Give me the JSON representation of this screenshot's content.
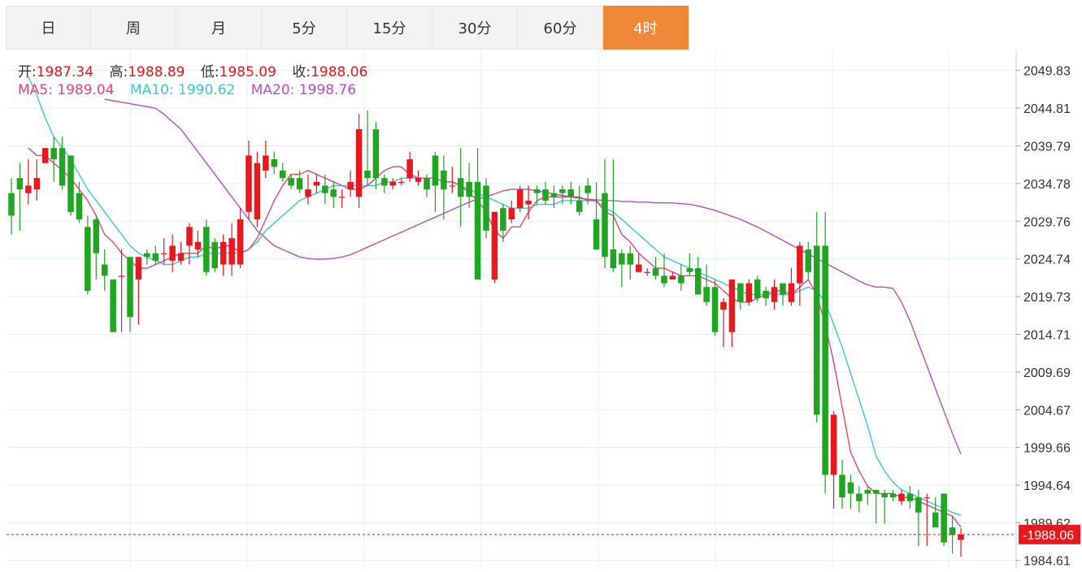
{
  "tabs": [
    {
      "label": "日",
      "active": false
    },
    {
      "label": "周",
      "active": false
    },
    {
      "label": "月",
      "active": false
    },
    {
      "label": "5分",
      "active": false
    },
    {
      "label": "15分",
      "active": false
    },
    {
      "label": "30分",
      "active": false
    },
    {
      "label": "60分",
      "active": false
    },
    {
      "label": "4时",
      "active": true
    }
  ],
  "ohlc": {
    "open_label": "开:",
    "open": "1987.34",
    "high_label": "高:",
    "high": "1988.89",
    "low_label": "低:",
    "low": "1985.09",
    "close_label": "收:",
    "close": "1988.06"
  },
  "ma_legend": {
    "ma5_label": "MA5:",
    "ma5": "1989.04",
    "ma10_label": "MA10:",
    "ma10": "1990.62",
    "ma20_label": "MA20:",
    "ma20": "1998.76"
  },
  "colors": {
    "up": "#e8181c",
    "down": "#1fa51f",
    "ma5": "#e8447a",
    "ma10": "#3cc8d8",
    "ma20": "#b84fc6",
    "grid": "#e3edf6",
    "axis_text": "#333333",
    "price_tag": "#e8181c",
    "active_tab": "#f0883a"
  },
  "chart_data": {
    "type": "candlestick",
    "y_axis": {
      "min": 1983.5,
      "max": 2052.5,
      "position": "right",
      "ticks": [
        "2049.83",
        "2044.81",
        "2039.79",
        "2034.78",
        "2029.76",
        "2024.74",
        "2019.73",
        "2014.71",
        "2009.69",
        "2004.67",
        "1999.66",
        "1994.64",
        "1989.62",
        "1984.61"
      ]
    },
    "grid": true,
    "last_price": "1988.06",
    "candles": [
      [
        2033.5,
        2030.5,
        2035.5,
        2028.0
      ],
      [
        2035.5,
        2034.0,
        2037.5,
        2028.5
      ],
      [
        2033.5,
        2034.5,
        2038.0,
        2032.0
      ],
      [
        2034.0,
        2035.5,
        2038.0,
        2032.5
      ],
      [
        2037.5,
        2039.5,
        2039.5,
        2037.5
      ],
      [
        2039.5,
        2038.0,
        2041.0,
        2035.0
      ],
      [
        2039.5,
        2034.5,
        2041.0,
        2034.0
      ],
      [
        2038.5,
        2031.0,
        2038.5,
        2030.5
      ],
      [
        2033.5,
        2030.0,
        2035.0,
        2029.5
      ],
      [
        2029.0,
        2020.5,
        2030.5,
        2020.0
      ],
      [
        2030.0,
        2025.5,
        2030.5,
        2022.0
      ],
      [
        2024.0,
        2022.5,
        2026.0,
        2020.5
      ],
      [
        2022.0,
        2015.0,
        2022.0,
        2015.0
      ],
      [
        2022.5,
        2022.5,
        2026.0,
        2015.0
      ],
      [
        2025.0,
        2017.0,
        2025.0,
        2015.0
      ],
      [
        2022.0,
        2025.0,
        2025.0,
        2016.0
      ],
      [
        2025.5,
        2025.0,
        2026.0,
        2024.0
      ],
      [
        2025.5,
        2024.5,
        2026.5,
        2024.0
      ],
      [
        2025.5,
        2025.5,
        2027.5,
        2024.0
      ],
      [
        2024.5,
        2026.5,
        2028.0,
        2023.0
      ],
      [
        2024.5,
        2025.5,
        2027.0,
        2024.0
      ],
      [
        2026.5,
        2029.0,
        2029.5,
        2024.0
      ],
      [
        2026.0,
        2027.0,
        2028.5,
        2025.0
      ],
      [
        2029.0,
        2023.0,
        2030.0,
        2022.5
      ],
      [
        2027.0,
        2023.5,
        2027.5,
        2023.0
      ],
      [
        2024.0,
        2027.0,
        2028.0,
        2022.5
      ],
      [
        2024.0,
        2027.5,
        2029.5,
        2022.5
      ],
      [
        2024.0,
        2030.0,
        2031.5,
        2023.5
      ],
      [
        2031.0,
        2038.5,
        2040.5,
        2030.0
      ],
      [
        2030.0,
        2037.5,
        2039.0,
        2029.0
      ],
      [
        2036.5,
        2038.5,
        2040.5,
        2035.5
      ],
      [
        2038.0,
        2037.0,
        2039.0,
        2036.0
      ],
      [
        2036.5,
        2035.5,
        2037.5,
        2035.0
      ],
      [
        2035.5,
        2034.5,
        2036.0,
        2034.0
      ],
      [
        2035.5,
        2034.0,
        2036.5,
        2033.5
      ],
      [
        2033.0,
        2034.0,
        2036.0,
        2032.0
      ],
      [
        2034.5,
        2035.0,
        2036.0,
        2033.5
      ],
      [
        2034.5,
        2033.5,
        2036.0,
        2032.0
      ],
      [
        2034.0,
        2033.0,
        2035.0,
        2031.5
      ],
      [
        2033.0,
        2033.0,
        2034.0,
        2031.5
      ],
      [
        2034.0,
        2035.0,
        2036.5,
        2033.0
      ],
      [
        2033.0,
        2042.0,
        2044.0,
        2031.5
      ],
      [
        2036.5,
        2035.5,
        2044.5,
        2034.5
      ],
      [
        2042.0,
        2035.5,
        2043.0,
        2034.0
      ],
      [
        2035.5,
        2034.5,
        2036.0,
        2033.5
      ],
      [
        2034.5,
        2035.0,
        2035.5,
        2034.0
      ],
      [
        2035.0,
        2035.0,
        2035.5,
        2034.5
      ],
      [
        2035.5,
        2038.0,
        2039.0,
        2035.0
      ],
      [
        2035.0,
        2035.5,
        2036.5,
        2034.5
      ],
      [
        2035.5,
        2034.0,
        2036.0,
        2033.0
      ],
      [
        2038.5,
        2034.5,
        2039.0,
        2031.0
      ],
      [
        2036.5,
        2034.0,
        2038.5,
        2030.0
      ],
      [
        2034.5,
        2034.5,
        2037.0,
        2033.5
      ],
      [
        2035.5,
        2033.0,
        2039.5,
        2029.0
      ],
      [
        2035.0,
        2033.0,
        2037.5,
        2031.5
      ],
      [
        2035.0,
        2022.0,
        2039.5,
        2022.0
      ],
      [
        2034.5,
        2028.5,
        2035.5,
        2027.5
      ],
      [
        2022.0,
        2031.0,
        2031.0,
        2021.5
      ],
      [
        2031.5,
        2028.5,
        2032.0,
        2027.0
      ],
      [
        2030.0,
        2031.5,
        2032.5,
        2029.5
      ],
      [
        2031.5,
        2034.0,
        2034.5,
        2031.0
      ],
      [
        2032.0,
        2032.5,
        2034.5,
        2030.0
      ],
      [
        2034.0,
        2033.5,
        2034.5,
        2032.0
      ],
      [
        2034.0,
        2032.5,
        2035.0,
        2032.0
      ],
      [
        2033.5,
        2033.0,
        2034.5,
        2031.5
      ],
      [
        2034.0,
        2033.5,
        2034.5,
        2032.0
      ],
      [
        2034.0,
        2033.0,
        2035.0,
        2032.0
      ],
      [
        2032.5,
        2031.0,
        2034.5,
        2030.5
      ],
      [
        2034.5,
        2033.5,
        2035.5,
        2032.0
      ],
      [
        2030.0,
        2026.0,
        2035.0,
        2026.0
      ],
      [
        2033.5,
        2025.0,
        2038.0,
        2023.5
      ],
      [
        2026.0,
        2023.5,
        2038.0,
        2023.0
      ],
      [
        2025.5,
        2024.0,
        2026.0,
        2021.0
      ],
      [
        2025.5,
        2024.0,
        2026.5,
        2022.0
      ],
      [
        2023.0,
        2024.0,
        2025.5,
        2023.0
      ],
      [
        2023.0,
        2023.0,
        2023.5,
        2022.5
      ],
      [
        2023.5,
        2022.5,
        2025.0,
        2022.0
      ],
      [
        2022.5,
        2021.5,
        2025.5,
        2021.0
      ],
      [
        2022.0,
        2022.5,
        2023.0,
        2022.0
      ],
      [
        2022.5,
        2021.5,
        2024.0,
        2020.5
      ],
      [
        2023.5,
        2023.0,
        2025.5,
        2022.5
      ],
      [
        2023.5,
        2020.0,
        2025.0,
        2020.0
      ],
      [
        2021.0,
        2019.0,
        2024.0,
        2018.5
      ],
      [
        2021.0,
        2015.0,
        2022.0,
        2014.5
      ],
      [
        2018.0,
        2019.0,
        2019.5,
        2013.0
      ],
      [
        2015.0,
        2022.0,
        2022.0,
        2013.0
      ],
      [
        2021.5,
        2019.0,
        2021.5,
        2018.0
      ],
      [
        2019.0,
        2021.5,
        2022.0,
        2018.5
      ],
      [
        2022.0,
        2019.5,
        2022.5,
        2019.0
      ],
      [
        2020.5,
        2019.5,
        2021.0,
        2018.5
      ],
      [
        2019.0,
        2021.0,
        2022.0,
        2018.0
      ],
      [
        2021.5,
        2020.0,
        2021.5,
        2018.5
      ],
      [
        2019.0,
        2021.5,
        2023.5,
        2018.5
      ],
      [
        2021.5,
        2026.5,
        2027.0,
        2018.5
      ],
      [
        2026.0,
        2023.0,
        2027.0,
        2022.0
      ],
      [
        2026.5,
        2004.0,
        2031.0,
        2003.0
      ],
      [
        2026.5,
        1996.0,
        2031.0,
        1993.5
      ],
      [
        1996.0,
        2004.0,
        2004.5,
        1991.5
      ],
      [
        1996.0,
        1993.0,
        1998.0,
        1991.5
      ],
      [
        1995.0,
        1993.5,
        1996.0,
        1991.5
      ],
      [
        1993.5,
        1992.5,
        1994.5,
        1991.0
      ],
      [
        1994.0,
        1993.5,
        1994.5,
        1992.0
      ],
      [
        1994.0,
        1993.5,
        1994.0,
        1989.5
      ],
      [
        1993.5,
        1993.0,
        1994.0,
        1989.5
      ],
      [
        1993.5,
        1993.0,
        1994.0,
        1992.5
      ],
      [
        1992.5,
        1993.5,
        1994.0,
        1992.0
      ],
      [
        1993.5,
        1992.5,
        1994.5,
        1991.5
      ],
      [
        1993.0,
        1991.0,
        1994.0,
        1986.5
      ],
      [
        1993.0,
        1993.0,
        1993.5,
        1986.5
      ],
      [
        1991.0,
        1989.0,
        1993.0,
        1989.0
      ],
      [
        1993.5,
        1987.0,
        1993.5,
        1986.5
      ],
      [
        1989.0,
        1988.0,
        1990.5,
        1985.5
      ],
      [
        1987.34,
        1988.06,
        1988.89,
        1985.09
      ]
    ],
    "ma5": [
      2039.5,
      2038.5,
      2038.5,
      2037.5,
      2036.5,
      2035.5,
      2034.0,
      2032.5,
      2030.5,
      2028.0,
      2027.0,
      2025.5,
      2024.5,
      2023.5,
      2023.5,
      2024.0,
      2024.5,
      2025.0,
      2025.5,
      2025.5,
      2025.5,
      2026.5,
      2026.0,
      2026.5,
      2026.5,
      2025.5,
      2026.0,
      2027.5,
      2030.0,
      2032.5,
      2034.5,
      2036.0,
      2036.0,
      2036.5,
      2036.0,
      2035.5,
      2035.0,
      2034.5,
      2034.0,
      2034.0,
      2034.5,
      2035.5,
      2036.5,
      2037.0,
      2037.0,
      2036.0,
      2035.5,
      2035.5,
      2035.5,
      2035.0,
      2035.0,
      2034.5,
      2033.5,
      2032.5,
      2031.0,
      2028.5,
      2027.5,
      2029.0,
      2029.0,
      2031.0,
      2032.5,
      2033.0,
      2033.0,
      2033.0,
      2033.0,
      2033.0,
      2032.5,
      2032.5,
      2031.0,
      2030.5,
      2028.0,
      2027.0,
      2025.5,
      2024.5,
      2023.5,
      2023.5,
      2023.0,
      2022.5,
      2022.5,
      2022.5,
      2022.0,
      2021.5,
      2020.5,
      2019.5,
      2019.0,
      2019.0,
      2019.5,
      2020.0,
      2020.5,
      2020.5,
      2020.0,
      2021.0,
      2022.0,
      2020.0,
      2016.0,
      2011.0,
      2005.0,
      1999.0,
      1996.5,
      1994.5,
      1993.5,
      1993.5,
      1993.5,
      1993.0,
      1993.0,
      1992.5,
      1992.0,
      1991.5,
      1991.0,
      1990.5,
      1989.04
    ],
    "ma10": [
      2049.0,
      2046.5,
      2043.5,
      2041.0,
      2039.5,
      2038.0,
      2036.0,
      2034.0,
      2032.5,
      2031.0,
      2029.5,
      2028.0,
      2026.5,
      2025.5,
      2025.0,
      2024.5,
      2024.0,
      2024.0,
      2024.5,
      2025.0,
      2025.0,
      2025.5,
      2025.5,
      2025.5,
      2025.5,
      2025.5,
      2026.0,
      2027.0,
      2028.5,
      2029.5,
      2030.5,
      2031.5,
      2032.5,
      2033.0,
      2033.5,
      2034.0,
      2034.5,
      2034.5,
      2034.5,
      2034.5,
      2034.5,
      2034.5,
      2035.0,
      2035.0,
      2035.5,
      2035.5,
      2035.5,
      2035.5,
      2035.5,
      2035.0,
      2035.0,
      2034.5,
      2034.0,
      2033.5,
      2033.0,
      2032.5,
      2032.0,
      2031.5,
      2031.5,
      2031.5,
      2032.0,
      2032.0,
      2032.0,
      2032.5,
      2032.5,
      2032.5,
      2032.5,
      2032.5,
      2031.5,
      2031.0,
      2030.0,
      2029.0,
      2028.0,
      2027.0,
      2026.0,
      2025.0,
      2024.5,
      2024.0,
      2023.5,
      2023.0,
      2022.5,
      2022.0,
      2021.5,
      2021.0,
      2020.5,
      2020.0,
      2020.0,
      2020.0,
      2020.0,
      2020.0,
      2020.0,
      2020.5,
      2021.0,
      2020.5,
      2019.0,
      2016.0,
      2013.0,
      2009.5,
      2006.0,
      2002.5,
      1998.5,
      1996.5,
      1995.0,
      1994.0,
      1993.5,
      1993.0,
      1992.5,
      1992.0,
      1991.5,
      1991.0,
      1990.62
    ],
    "ma20": [
      2046.0,
      2045.8,
      2045.6,
      2045.4,
      2045.2,
      2045.0,
      2044.8,
      2044.0,
      2043.0,
      2042.0,
      2040.5,
      2039.0,
      2037.5,
      2036.0,
      2034.5,
      2033.0,
      2031.5,
      2030.0,
      2028.5,
      2027.5,
      2026.5,
      2026.0,
      2025.5,
      2025.0,
      2024.8,
      2024.7,
      2024.7,
      2024.8,
      2025.0,
      2025.3,
      2025.8,
      2026.3,
      2026.8,
      2027.3,
      2027.8,
      2028.3,
      2028.8,
      2029.3,
      2029.8,
      2030.3,
      2030.8,
      2031.3,
      2031.8,
      2032.3,
      2032.7,
      2033.0,
      2033.4,
      2033.8,
      2034.0,
      2034.0,
      2034.0,
      2033.8,
      2033.6,
      2033.4,
      2033.2,
      2033.0,
      2032.8,
      2032.7,
      2032.6,
      2032.5,
      2032.5,
      2032.4,
      2032.4,
      2032.3,
      2032.3,
      2032.2,
      2032.2,
      2032.2,
      2032.1,
      2032.0,
      2031.8,
      2031.5,
      2031.2,
      2030.8,
      2030.4,
      2030.0,
      2029.5,
      2029.0,
      2028.4,
      2027.8,
      2027.2,
      2026.6,
      2026.0,
      2025.4,
      2024.8,
      2024.2,
      2023.6,
      2023.0,
      2022.4,
      2021.8,
      2021.3,
      2021.0,
      2021.0,
      2020.8,
      2019.0,
      2016.5,
      2013.5,
      2010.5,
      2007.5,
      2004.5,
      2001.5,
      1998.76
    ]
  }
}
